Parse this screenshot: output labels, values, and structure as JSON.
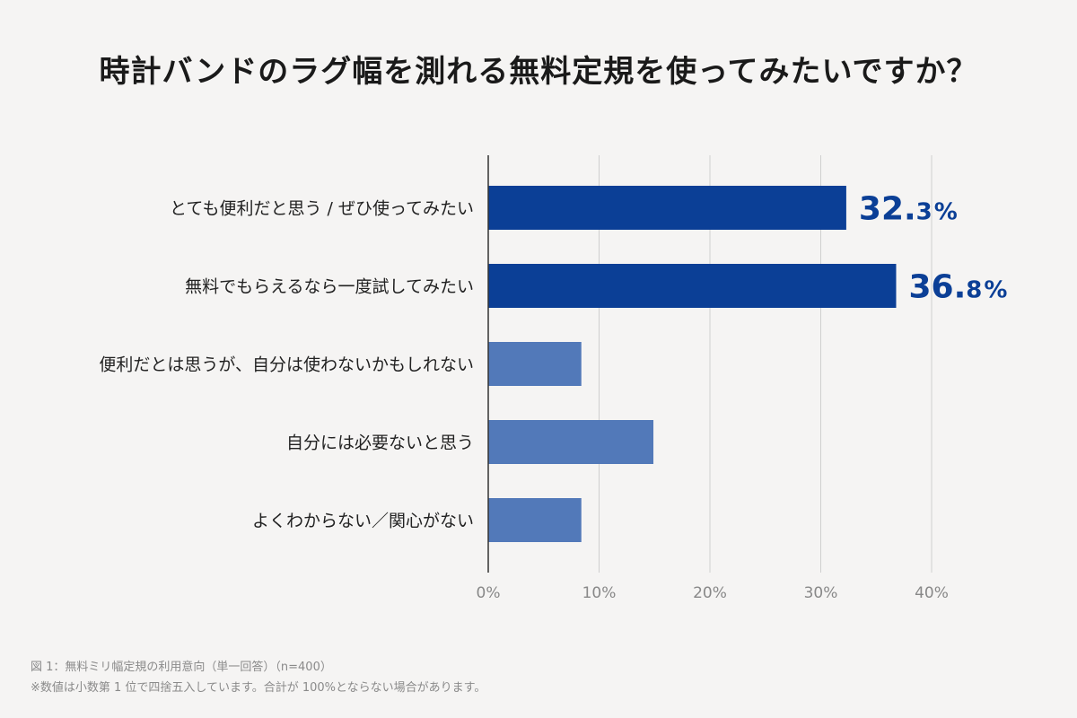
{
  "title": "時計バンドのラグ幅を測れる無料定規を使ってみたいですか？",
  "footnotes": {
    "line1": "図 1：無料ミリ幅定規の利用意向（単一回答）（n=400）",
    "line2": "※数値は小数第 1 位で四捨五入しています。合計が 100%とならない場合があります。"
  },
  "colors": {
    "highlight": "#0b3f96",
    "normal": "#5279b9",
    "grid": "#cfcfcf",
    "axis": "#333333"
  },
  "chart_data": {
    "type": "bar",
    "orientation": "horizontal",
    "categories": [
      "とても便利だと思う / ぜひ使ってみたい",
      "無料でもらえるなら一度試してみたい",
      "便利だとは思うが、自分は使わないかもしれない",
      "自分には必要ないと思う",
      "よくわからない／関心がない"
    ],
    "values": [
      32.3,
      36.8,
      8.4,
      14.9,
      8.4
    ],
    "highlighted": [
      true,
      true,
      false,
      false,
      false
    ],
    "data_labels": [
      {
        "main": "32.",
        "decimal": "3",
        "unit": "%"
      },
      {
        "main": "36.",
        "decimal": "8",
        "unit": "%"
      },
      null,
      null,
      null
    ],
    "xlim": [
      0,
      40
    ],
    "xticks": [
      "0%",
      "10%",
      "20%",
      "30%",
      "40%"
    ],
    "grid": true
  }
}
